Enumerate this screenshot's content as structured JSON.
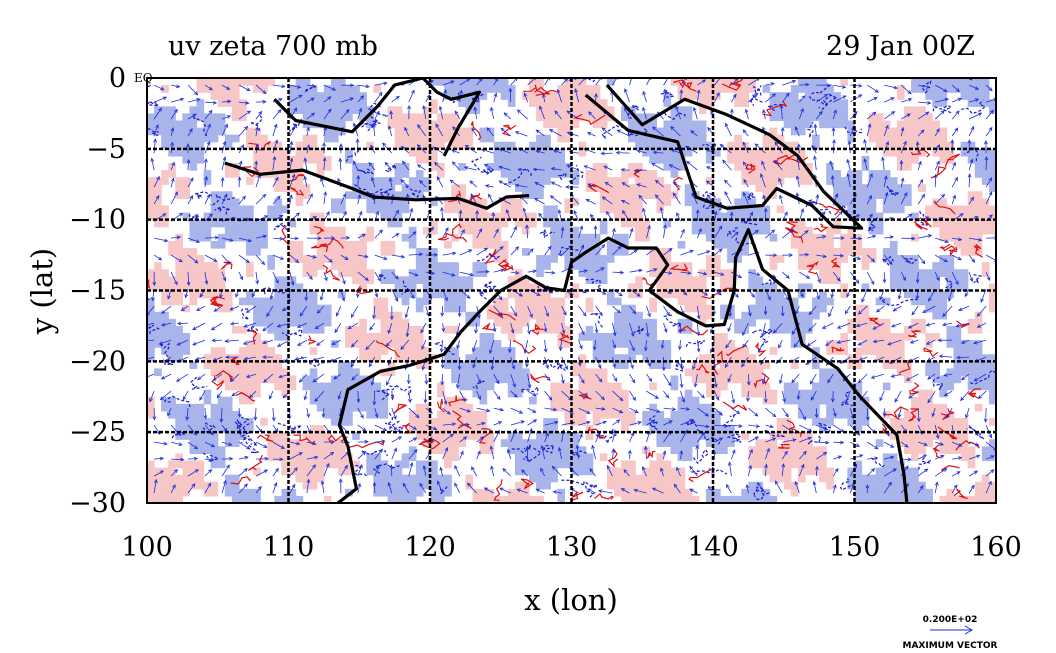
{
  "figure": {
    "title_left": "uv zeta 700 mb",
    "title_right": "29 Jan 00Z",
    "corner_label": "EQ",
    "xlabel": "x (lon)",
    "ylabel": "y (lat)",
    "vector_scale_value": "0.200E+02",
    "vector_scale_label": "MAXIMUM VECTOR"
  },
  "colors": {
    "positive_fill": "#f7c6c6",
    "positive_line": "#e01010",
    "negative_fill": "#a9b4ea",
    "negative_line": "#1a1ad0",
    "vector": "#1a2ee0",
    "coast": "#000000",
    "grid": "#000000"
  },
  "chart_data": {
    "type": "map",
    "projection": "lon-lat",
    "x_range": [
      100,
      160
    ],
    "y_range": [
      -30,
      0
    ],
    "x_ticks": [
      100,
      110,
      120,
      130,
      140,
      150,
      160
    ],
    "y_ticks": [
      0,
      -5,
      -10,
      -15,
      -20,
      -25,
      -30
    ],
    "x_tick_labels": [
      "100",
      "110",
      "120",
      "130",
      "140",
      "150",
      "160"
    ],
    "y_tick_labels": [
      "0",
      "−5",
      "−10",
      "−15",
      "−20",
      "−25",
      "−30"
    ],
    "grid": true,
    "fields": [
      "wind vectors (u,v)",
      "relative vorticity (zeta) contours"
    ],
    "level": "700 mb",
    "coastline_west_australia": [
      [
        113.5,
        -30
      ],
      [
        114.8,
        -29
      ],
      [
        114.2,
        -26
      ],
      [
        113.6,
        -24.5
      ],
      [
        114.2,
        -22
      ],
      [
        116.5,
        -20.7
      ],
      [
        118.5,
        -20.3
      ],
      [
        121,
        -19.5
      ],
      [
        122.2,
        -17.9
      ],
      [
        123.5,
        -16.5
      ],
      [
        125,
        -15
      ],
      [
        126.8,
        -14
      ],
      [
        128.2,
        -14.8
      ],
      [
        129.5,
        -15
      ],
      [
        130,
        -13
      ],
      [
        131,
        -12.3
      ],
      [
        132.6,
        -11.3
      ],
      [
        134,
        -12
      ],
      [
        136,
        -12
      ],
      [
        136.8,
        -13.2
      ],
      [
        135.5,
        -15
      ],
      [
        137.5,
        -16.5
      ],
      [
        139.5,
        -17.5
      ],
      [
        140.8,
        -17.4
      ],
      [
        141.5,
        -15
      ],
      [
        141.6,
        -12.7
      ],
      [
        142.5,
        -10.7
      ],
      [
        143.5,
        -13.5
      ],
      [
        145.3,
        -15
      ],
      [
        146.3,
        -18.8
      ],
      [
        148.8,
        -20.5
      ],
      [
        150.4,
        -22.5
      ],
      [
        153,
        -25.2
      ],
      [
        153.5,
        -28
      ],
      [
        153.7,
        -30
      ]
    ],
    "coastline_java_timor": [
      [
        105.5,
        -6
      ],
      [
        108,
        -6.8
      ],
      [
        111,
        -6.5
      ],
      [
        114.5,
        -7.8
      ],
      [
        116,
        -8.4
      ],
      [
        119,
        -8.6
      ],
      [
        122,
        -8.5
      ],
      [
        124,
        -9.2
      ],
      [
        125.4,
        -8.4
      ],
      [
        127,
        -8.3
      ]
    ],
    "coastline_borneo_sulawesi": [
      [
        109,
        -1.5
      ],
      [
        110.5,
        -3
      ],
      [
        114.5,
        -3.8
      ],
      [
        116.3,
        -2
      ],
      [
        117.5,
        -0.5
      ],
      [
        119.5,
        0
      ],
      [
        120.5,
        -1
      ],
      [
        121.5,
        -1.5
      ],
      [
        123.5,
        -1
      ],
      [
        122,
        -3.5
      ],
      [
        121,
        -5.5
      ]
    ],
    "coastline_new_guinea": [
      [
        131,
        -1.2
      ],
      [
        134,
        -3.7
      ],
      [
        137.5,
        -4.5
      ],
      [
        138.8,
        -8.4
      ],
      [
        141,
        -9.2
      ],
      [
        143.5,
        -9
      ],
      [
        144.5,
        -7.8
      ],
      [
        147,
        -9
      ],
      [
        148.5,
        -10.5
      ],
      [
        150.5,
        -10.6
      ],
      [
        147.8,
        -8
      ],
      [
        146,
        -5.5
      ],
      [
        144,
        -4
      ],
      [
        141,
        -2.6
      ],
      [
        138,
        -1.5
      ],
      [
        135,
        -3.3
      ],
      [
        132.5,
        -0.5
      ]
    ]
  }
}
